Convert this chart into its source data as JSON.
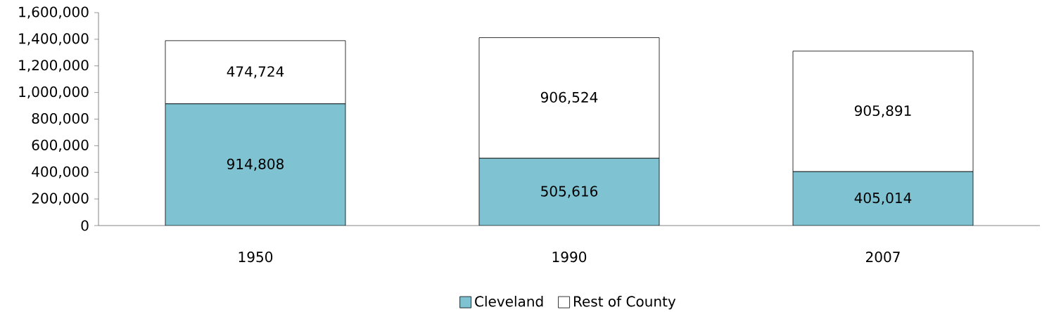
{
  "chart_data": {
    "type": "bar",
    "stacked": true,
    "categories": [
      "1950",
      "1990",
      "2007"
    ],
    "series": [
      {
        "name": "Cleveland",
        "color": "#7fc3d3",
        "values": [
          914808,
          505616,
          405014
        ],
        "value_labels": [
          "914,808",
          "505,616",
          "405,014"
        ]
      },
      {
        "name": "Rest of County",
        "color": "#ffffff",
        "values": [
          474724,
          906524,
          905891
        ],
        "value_labels": [
          "474,724",
          "906,524",
          "905,891"
        ]
      }
    ],
    "ylim": [
      0,
      1600000
    ],
    "yticks": [
      0,
      {
        "value": 200000,
        "label": "200,000"
      },
      {
        "value": 400000,
        "label": "400,000"
      },
      {
        "value": 600000,
        "label": "600,000"
      },
      {
        "value": 800000,
        "label": "800,000"
      },
      {
        "value": 1000000,
        "label": "1,000,000"
      },
      {
        "value": 1200000,
        "label": "1,200,000"
      },
      {
        "value": 1400000,
        "label": "1,400,000"
      },
      {
        "value": 1600000,
        "label": "1,600,000"
      }
    ],
    "grid": false,
    "legend": "bottom"
  }
}
